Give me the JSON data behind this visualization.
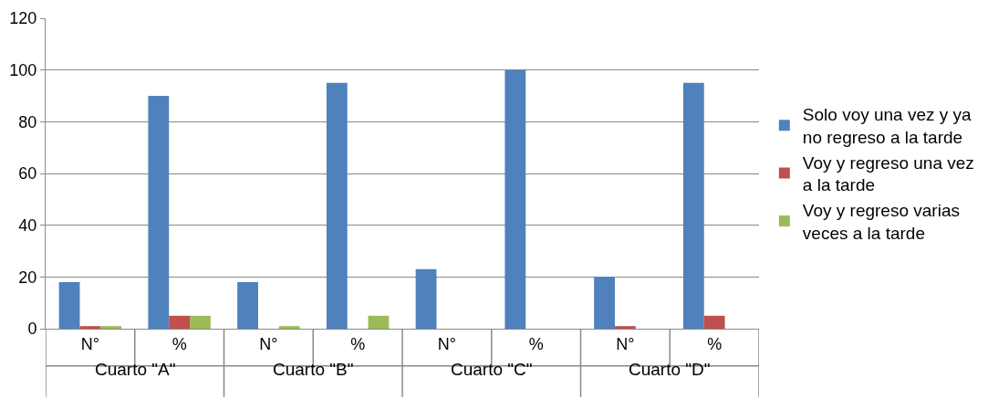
{
  "chart_data": {
    "type": "bar",
    "categories": [
      "N°",
      "%",
      "N°",
      "%",
      "N°",
      "%",
      "N°",
      "%"
    ],
    "annotations": [
      "Cuarto \"A\"",
      "Cuarto \"B\"",
      "Cuarto \"C\"",
      "Cuarto \"D\""
    ],
    "series": [
      {
        "name": "Solo voy una vez y ya no regreso a la tarde",
        "color": "#4f81bd",
        "values": [
          18,
          90,
          18,
          95,
          23,
          100,
          20,
          95
        ]
      },
      {
        "name": "Voy y regreso una vez a la tarde",
        "color": "#c0504d",
        "values": [
          1,
          5,
          null,
          null,
          null,
          null,
          1,
          5
        ]
      },
      {
        "name": "Voy y regreso varias veces a la tarde",
        "color": "#9bbb59",
        "values": [
          1,
          5,
          1,
          5,
          null,
          null,
          null,
          null
        ]
      }
    ],
    "ylim": [
      0,
      120
    ],
    "yticks": [
      0,
      20,
      40,
      60,
      80,
      100,
      120
    ],
    "grid": "y",
    "legend": "right"
  }
}
